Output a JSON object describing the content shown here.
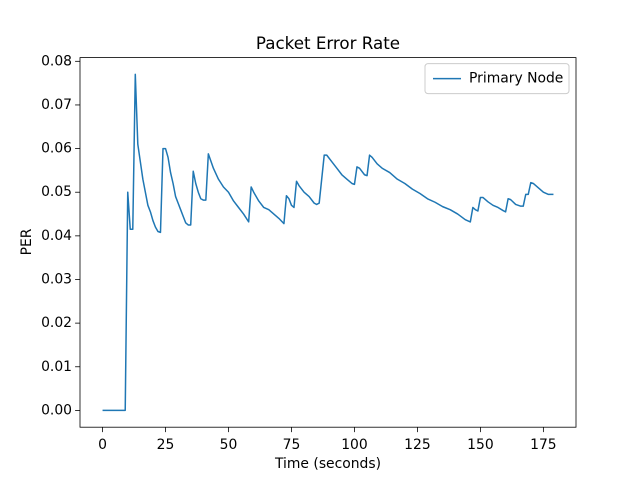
{
  "chart_data": {
    "type": "line",
    "title": "Packet Error Rate",
    "x_label": "Time (seconds)",
    "y_label": "PER",
    "x": [
      0,
      1,
      2,
      3,
      4,
      5,
      6,
      7,
      8,
      9,
      10,
      11,
      12,
      13,
      14,
      15,
      16,
      17,
      18,
      19,
      20,
      21,
      22,
      23,
      24,
      25,
      26,
      27,
      28,
      29,
      30,
      31,
      32,
      33,
      34,
      35,
      36,
      37,
      38,
      39,
      40,
      41,
      42,
      44,
      46,
      48,
      50,
      52,
      54,
      56,
      58,
      59,
      60,
      62,
      64,
      66,
      68,
      70,
      72,
      73,
      74,
      75,
      76,
      77,
      78,
      80,
      82,
      84,
      85,
      86,
      88,
      89,
      91,
      93,
      95,
      97,
      99,
      100,
      101,
      102,
      104,
      105,
      106,
      107,
      109,
      111,
      114,
      117,
      120,
      123,
      126,
      129,
      132,
      135,
      138,
      141,
      144,
      146,
      147,
      148,
      149,
      150,
      151,
      153,
      155,
      157,
      159,
      160,
      161,
      162,
      164,
      166,
      167,
      168,
      169,
      170,
      171,
      173,
      175,
      177,
      179
    ],
    "series": [
      {
        "name": "Primary Node",
        "color": "#1f77b4",
        "values": [
          0,
          0,
          0,
          0,
          0,
          0,
          0,
          0,
          0,
          0,
          0.05,
          0.0415,
          0.0415,
          0.077,
          0.061,
          0.057,
          0.053,
          0.05,
          0.047,
          0.0455,
          0.0435,
          0.042,
          0.041,
          0.0408,
          0.06,
          0.06,
          0.058,
          0.0545,
          0.052,
          0.049,
          0.0475,
          0.046,
          0.0445,
          0.043,
          0.0425,
          0.0425,
          0.0548,
          0.052,
          0.05,
          0.0485,
          0.0482,
          0.0482,
          0.0588,
          0.0555,
          0.053,
          0.0512,
          0.05,
          0.048,
          0.0465,
          0.045,
          0.0432,
          0.0512,
          0.05,
          0.048,
          0.0465,
          0.046,
          0.045,
          0.044,
          0.0428,
          0.0492,
          0.0485,
          0.047,
          0.0465,
          0.0525,
          0.0515,
          0.05,
          0.049,
          0.0475,
          0.0472,
          0.0475,
          0.0585,
          0.0585,
          0.057,
          0.0555,
          0.054,
          0.053,
          0.052,
          0.0518,
          0.0558,
          0.0555,
          0.054,
          0.0538,
          0.0585,
          0.058,
          0.0565,
          0.0555,
          0.0545,
          0.053,
          0.052,
          0.0507,
          0.0497,
          0.0485,
          0.0477,
          0.0467,
          0.046,
          0.045,
          0.0437,
          0.0432,
          0.0465,
          0.046,
          0.0457,
          0.0488,
          0.0488,
          0.0478,
          0.047,
          0.0465,
          0.0458,
          0.0455,
          0.0485,
          0.0483,
          0.0472,
          0.0468,
          0.0468,
          0.0495,
          0.0495,
          0.0522,
          0.052,
          0.051,
          0.05,
          0.0495,
          0.0495
        ]
      }
    ],
    "xlim": [
      -8.95,
      187.95
    ],
    "ylim": [
      -0.00385,
      0.08085
    ],
    "xticks": [
      0,
      25,
      50,
      75,
      100,
      125,
      150,
      175
    ],
    "yticks": [
      {
        "value": 0,
        "label": "0.00"
      },
      {
        "value": 0.01,
        "label": "0.01"
      },
      {
        "value": 0.02,
        "label": "0.02"
      },
      {
        "value": 0.03,
        "label": "0.03"
      },
      {
        "value": 0.04,
        "label": "0.04"
      },
      {
        "value": 0.05,
        "label": "0.05"
      },
      {
        "value": 0.06,
        "label": "0.06"
      },
      {
        "value": 0.07,
        "label": "0.07"
      },
      {
        "value": 0.08,
        "label": "0.08"
      }
    ],
    "grid": false,
    "legend": "upper right"
  }
}
